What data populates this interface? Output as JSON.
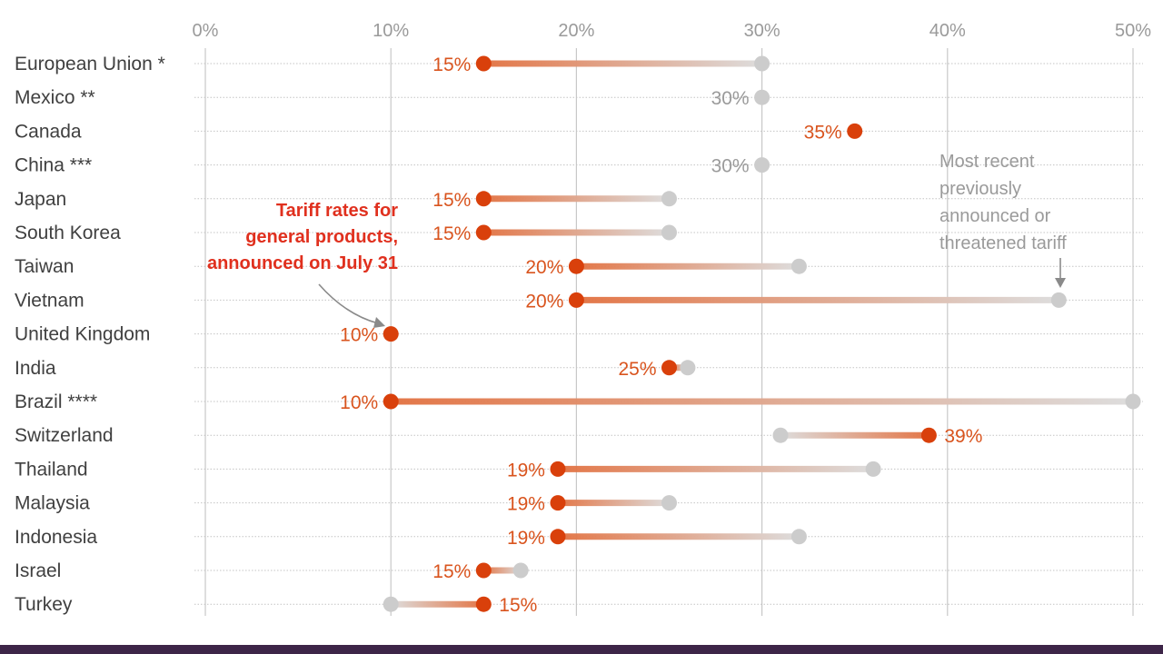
{
  "chart_data": {
    "type": "dumbbell",
    "title": "",
    "xlabel": "",
    "ylabel": "",
    "xlim": [
      0,
      50
    ],
    "x_ticks": [
      {
        "value": 0,
        "label": "0%"
      },
      {
        "value": 10,
        "label": "10%"
      },
      {
        "value": 20,
        "label": "20%"
      },
      {
        "value": 30,
        "label": "30%"
      },
      {
        "value": 40,
        "label": "40%"
      },
      {
        "value": 50,
        "label": "50%"
      }
    ],
    "series": [
      {
        "name": "Tariff rates for general products, announced on July 31",
        "color": "#d9400b"
      },
      {
        "name": "Most recent previously announced or threatened tariff",
        "color": "#cccccc"
      }
    ],
    "rows": [
      {
        "country": "European Union *",
        "new": 15,
        "new_label": "15%",
        "previous": 30,
        "prev_label": ""
      },
      {
        "country": "Mexico **",
        "new": null,
        "new_label": "",
        "previous": 30,
        "prev_label": "30%"
      },
      {
        "country": "Canada",
        "new": 35,
        "new_label": "35%",
        "previous": null,
        "prev_label": ""
      },
      {
        "country": "China ***",
        "new": null,
        "new_label": "",
        "previous": 30,
        "prev_label": "30%"
      },
      {
        "country": "Japan",
        "new": 15,
        "new_label": "15%",
        "previous": 25,
        "prev_label": ""
      },
      {
        "country": "South Korea",
        "new": 15,
        "new_label": "15%",
        "previous": 25,
        "prev_label": ""
      },
      {
        "country": "Taiwan",
        "new": 20,
        "new_label": "20%",
        "previous": 32,
        "prev_label": ""
      },
      {
        "country": "Vietnam",
        "new": 20,
        "new_label": "20%",
        "previous": 46,
        "prev_label": ""
      },
      {
        "country": "United Kingdom",
        "new": 10,
        "new_label": "10%",
        "previous": null,
        "prev_label": ""
      },
      {
        "country": "India",
        "new": 25,
        "new_label": "25%",
        "previous": 26,
        "prev_label": ""
      },
      {
        "country": "Brazil ****",
        "new": 10,
        "new_label": "10%",
        "previous": 50,
        "prev_label": ""
      },
      {
        "country": "Switzerland",
        "new": 39,
        "new_label": "39%",
        "previous": 31,
        "prev_label": ""
      },
      {
        "country": "Thailand",
        "new": 19,
        "new_label": "19%",
        "previous": 36,
        "prev_label": ""
      },
      {
        "country": "Malaysia",
        "new": 19,
        "new_label": "19%",
        "previous": 25,
        "prev_label": ""
      },
      {
        "country": "Indonesia",
        "new": 19,
        "new_label": "19%",
        "previous": 32,
        "prev_label": ""
      },
      {
        "country": "Israel",
        "new": 15,
        "new_label": "15%",
        "previous": 17,
        "prev_label": ""
      },
      {
        "country": "Turkey",
        "new": 15,
        "new_label": "15%",
        "previous": 10,
        "prev_label": ""
      }
    ],
    "annotations": {
      "new_rate": [
        "Tariff rates for",
        "general products,",
        "announced on July 31"
      ],
      "previous_rate": [
        "Most recent",
        "previously",
        "announced or",
        "threatened tariff"
      ]
    }
  },
  "colors": {
    "new_dot": "#d9400b",
    "new_label": "#d9541e",
    "prev_dot": "#cccccc",
    "grey_text": "#9a9a9a",
    "annotation_red": "#e0301e",
    "footer": "#3d2548"
  }
}
